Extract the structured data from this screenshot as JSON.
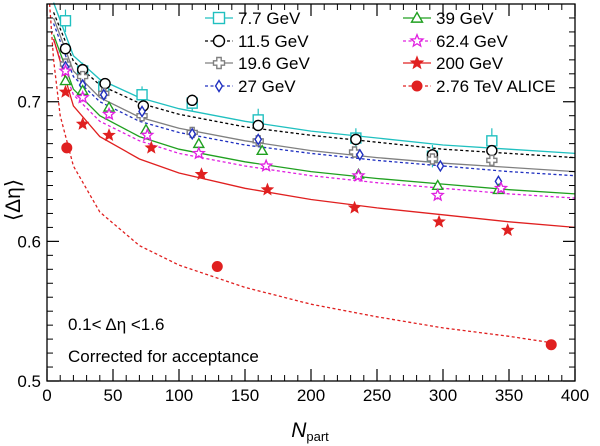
{
  "chart_data": {
    "type": "scatter",
    "title": "",
    "xlabel": {
      "main": "N",
      "sub": "part"
    },
    "ylabel": "⟨Δη⟩",
    "xlim": [
      0,
      400
    ],
    "ylim": [
      0.5,
      0.77
    ],
    "x_ticks": [
      0,
      50,
      100,
      150,
      200,
      250,
      300,
      350,
      400
    ],
    "y_ticks": [
      0.5,
      0.6,
      0.7
    ],
    "grid": false,
    "legend_position": "top-right",
    "annotations": [
      "0.1< Δη <1.6",
      "Corrected for acceptance"
    ],
    "series": [
      {
        "name": "7.7 GeV",
        "color": "#20c0c0",
        "marker": "open-square",
        "line": "solid",
        "x": [
          14,
          27,
          43,
          72,
          110,
          160,
          234,
          292,
          337
        ],
        "y": [
          0.758,
          0.722,
          0.711,
          0.705,
          0.699,
          0.687,
          0.674,
          0.661,
          0.672
        ],
        "err": [
          0.008,
          0.006,
          0.006,
          0.006,
          0.006,
          0.008,
          0.007,
          0.008,
          0.009
        ],
        "fit": [
          [
            5,
            0.771
          ],
          [
            20,
            0.733
          ],
          [
            40,
            0.716
          ],
          [
            70,
            0.703
          ],
          [
            100,
            0.695
          ],
          [
            150,
            0.686
          ],
          [
            200,
            0.679
          ],
          [
            250,
            0.674
          ],
          [
            300,
            0.669
          ],
          [
            350,
            0.666
          ],
          [
            400,
            0.663
          ]
        ]
      },
      {
        "name": "11.5 GeV",
        "color": "#000000",
        "marker": "open-circle",
        "line": "dotted",
        "x": [
          14,
          27,
          44,
          73,
          110,
          160,
          234,
          292,
          337
        ],
        "y": [
          0.738,
          0.723,
          0.713,
          0.697,
          0.701,
          0.683,
          0.673,
          0.662,
          0.665
        ],
        "err": [
          0.004,
          0.004,
          0.004,
          0.004,
          0.004,
          0.004,
          0.004,
          0.004,
          0.004
        ],
        "fit": [
          [
            5,
            0.764
          ],
          [
            20,
            0.729
          ],
          [
            40,
            0.712
          ],
          [
            70,
            0.699
          ],
          [
            100,
            0.691
          ],
          [
            150,
            0.682
          ],
          [
            200,
            0.676
          ],
          [
            250,
            0.671
          ],
          [
            300,
            0.666
          ],
          [
            350,
            0.663
          ],
          [
            400,
            0.66
          ]
        ]
      },
      {
        "name": "19.6 GeV",
        "color": "#808080",
        "marker": "open-cross",
        "line": "solid",
        "x": [
          14,
          27,
          43,
          72,
          110,
          160,
          233,
          292,
          337
        ],
        "y": [
          0.727,
          0.718,
          0.706,
          0.69,
          0.678,
          0.672,
          0.664,
          0.659,
          0.658
        ],
        "err": [
          0.004,
          0.004,
          0.004,
          0.004,
          0.004,
          0.004,
          0.004,
          0.004,
          0.004
        ],
        "fit": [
          [
            5,
            0.76
          ],
          [
            20,
            0.722
          ],
          [
            40,
            0.703
          ],
          [
            70,
            0.689
          ],
          [
            100,
            0.681
          ],
          [
            150,
            0.672
          ],
          [
            200,
            0.665
          ],
          [
            250,
            0.66
          ],
          [
            300,
            0.656
          ],
          [
            350,
            0.653
          ],
          [
            400,
            0.65
          ]
        ]
      },
      {
        "name": "27 GeV",
        "color": "#2030c0",
        "marker": "open-diamond",
        "line": "dotted",
        "x": [
          14,
          27,
          43,
          72,
          110,
          160,
          237,
          298,
          342
        ],
        "y": [
          0.725,
          0.712,
          0.705,
          0.693,
          0.677,
          0.673,
          0.662,
          0.654,
          0.643
        ],
        "err": [
          0.003,
          0.003,
          0.003,
          0.003,
          0.003,
          0.003,
          0.003,
          0.003,
          0.003
        ],
        "fit": [
          [
            5,
            0.756
          ],
          [
            20,
            0.718
          ],
          [
            40,
            0.7
          ],
          [
            70,
            0.686
          ],
          [
            100,
            0.678
          ],
          [
            150,
            0.669
          ],
          [
            200,
            0.663
          ],
          [
            250,
            0.658
          ],
          [
            300,
            0.654
          ],
          [
            350,
            0.65
          ],
          [
            400,
            0.647
          ]
        ]
      },
      {
        "name": "39 GeV",
        "color": "#20a020",
        "marker": "open-triangle",
        "line": "solid",
        "x": [
          14,
          27,
          47,
          75,
          115,
          163,
          236,
          296,
          342
        ],
        "y": [
          0.715,
          0.708,
          0.696,
          0.68,
          0.67,
          0.665,
          0.648,
          0.64,
          0.637
        ],
        "err": [
          0.003,
          0.003,
          0.003,
          0.003,
          0.003,
          0.003,
          0.003,
          0.003,
          0.003
        ],
        "fit": [
          [
            5,
            0.748
          ],
          [
            20,
            0.709
          ],
          [
            40,
            0.69
          ],
          [
            70,
            0.675
          ],
          [
            100,
            0.666
          ],
          [
            150,
            0.657
          ],
          [
            200,
            0.65
          ],
          [
            250,
            0.645
          ],
          [
            300,
            0.641
          ],
          [
            350,
            0.637
          ],
          [
            400,
            0.634
          ]
        ]
      },
      {
        "name": "62.4 GeV",
        "color": "#e020e0",
        "marker": "open-star",
        "line": "dotted",
        "x": [
          14,
          27,
          47,
          76,
          115,
          166,
          236,
          296,
          344
        ],
        "y": [
          0.722,
          0.703,
          0.691,
          0.676,
          0.663,
          0.654,
          0.647,
          0.633,
          0.638
        ],
        "err": [
          0.003,
          0.003,
          0.003,
          0.003,
          0.003,
          0.003,
          0.003,
          0.003,
          0.003
        ],
        "fit": [
          [
            5,
            0.744
          ],
          [
            20,
            0.705
          ],
          [
            40,
            0.686
          ],
          [
            70,
            0.672
          ],
          [
            100,
            0.663
          ],
          [
            150,
            0.654
          ],
          [
            200,
            0.647
          ],
          [
            250,
            0.642
          ],
          [
            300,
            0.638
          ],
          [
            350,
            0.634
          ],
          [
            400,
            0.631
          ]
        ]
      },
      {
        "name": "200 GeV",
        "color": "#e02020",
        "marker": "filled-star",
        "line": "solid",
        "x": [
          14,
          27,
          47,
          79,
          117,
          167,
          233,
          297,
          349
        ],
        "y": [
          0.707,
          0.684,
          0.676,
          0.667,
          0.648,
          0.637,
          0.624,
          0.614,
          0.608
        ],
        "err": [
          0.002,
          0.002,
          0.002,
          0.002,
          0.002,
          0.002,
          0.002,
          0.002,
          0.002
        ],
        "fit": [
          [
            5,
            0.745
          ],
          [
            20,
            0.697
          ],
          [
            40,
            0.675
          ],
          [
            70,
            0.659
          ],
          [
            100,
            0.649
          ],
          [
            150,
            0.638
          ],
          [
            200,
            0.63
          ],
          [
            250,
            0.624
          ],
          [
            300,
            0.619
          ],
          [
            350,
            0.614
          ],
          [
            400,
            0.61
          ]
        ]
      },
      {
        "name": "2.76 TeV ALICE",
        "color": "#e02020",
        "marker": "filled-circle",
        "line": "dotted",
        "x": [
          15,
          129,
          382
        ],
        "y": [
          0.667,
          0.582,
          0.526
        ],
        "err": [
          0,
          0,
          0
        ],
        "fit": [
          [
            2,
            0.77
          ],
          [
            5,
            0.73
          ],
          [
            10,
            0.69
          ],
          [
            20,
            0.654
          ],
          [
            40,
            0.621
          ],
          [
            70,
            0.597
          ],
          [
            100,
            0.583
          ],
          [
            150,
            0.567
          ],
          [
            200,
            0.555
          ],
          [
            250,
            0.546
          ],
          [
            300,
            0.538
          ],
          [
            350,
            0.532
          ],
          [
            385,
            0.527
          ]
        ]
      }
    ]
  }
}
